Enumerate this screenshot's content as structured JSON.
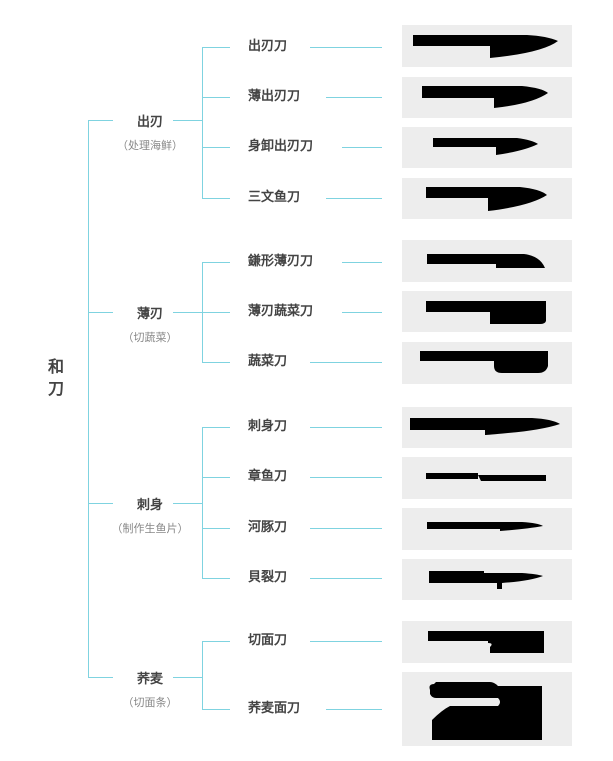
{
  "root": {
    "label": "和刀"
  },
  "line_color": "#7fd3e0",
  "categories": [
    {
      "label": "出刃",
      "subtitle": "（处理海鲜）",
      "items": [
        {
          "label": "出刃刀",
          "icon": "deba-knife-icon"
        },
        {
          "label": "薄出刃刀",
          "icon": "usu-deba-knife-icon"
        },
        {
          "label": "身卸出刃刀",
          "icon": "mioroshi-deba-knife-icon"
        },
        {
          "label": "三文鱼刀",
          "icon": "salmon-knife-icon"
        }
      ]
    },
    {
      "label": "薄刃",
      "subtitle": "（切蔬菜）",
      "items": [
        {
          "label": "鎌形薄刃刀",
          "icon": "kamagata-usuba-knife-icon"
        },
        {
          "label": "薄刃蔬菜刀",
          "icon": "usuba-knife-icon"
        },
        {
          "label": "蔬菜刀",
          "icon": "vegetable-knife-icon"
        }
      ]
    },
    {
      "label": "刺身",
      "subtitle": "（制作生鱼片）",
      "items": [
        {
          "label": "刺身刀",
          "icon": "sashimi-knife-icon"
        },
        {
          "label": "章鱼刀",
          "icon": "takohiki-knife-icon"
        },
        {
          "label": "河豚刀",
          "icon": "fugu-knife-icon"
        },
        {
          "label": "貝裂刀",
          "icon": "kaisaki-knife-icon"
        }
      ]
    },
    {
      "label": "荞麦",
      "subtitle": "（切面条）",
      "items": [
        {
          "label": "切面刀",
          "icon": "menkiri-knife-icon"
        },
        {
          "label": "荞麦面刀",
          "icon": "soba-knife-icon"
        }
      ]
    }
  ]
}
